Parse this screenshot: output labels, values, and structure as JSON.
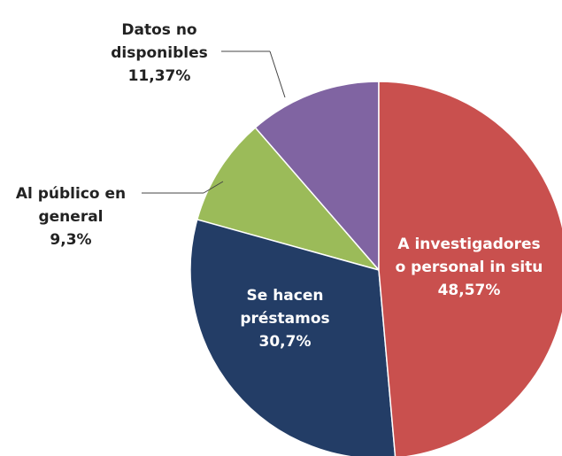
{
  "chart_data": {
    "type": "pie",
    "categories": [
      "A investigadores o personal in situ",
      "Se hacen préstamos",
      "Al público en general",
      "Datos no disponibles"
    ],
    "values": [
      48.57,
      30.7,
      9.3,
      11.37
    ],
    "value_labels": [
      "48,57%",
      "30,7%",
      "9,3%",
      "11,37%"
    ],
    "colors": [
      "#c9504e",
      "#233d66",
      "#9bbb59",
      "#8064a2"
    ]
  }
}
